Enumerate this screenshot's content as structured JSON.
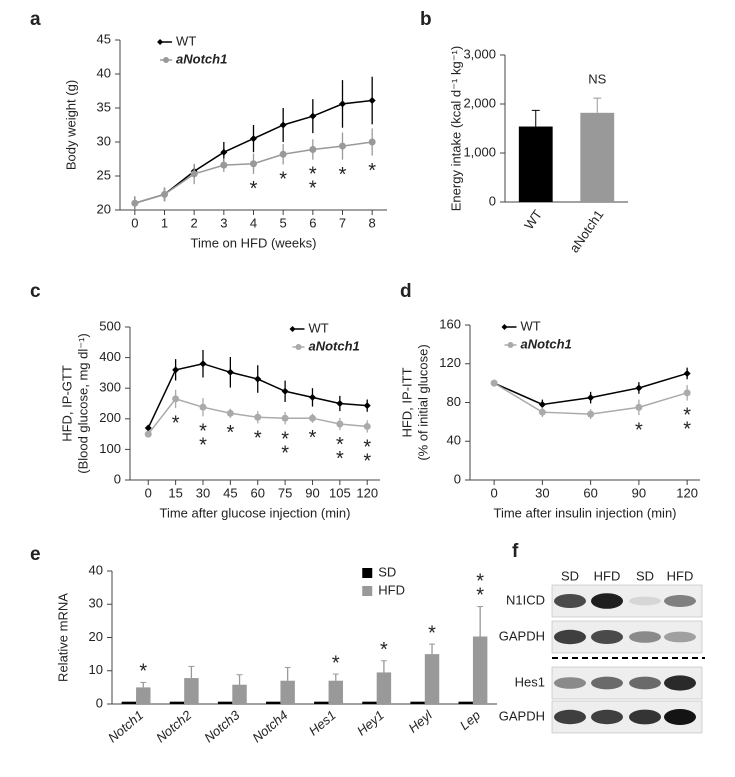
{
  "chart_data": [
    {
      "type": "line",
      "panel": "a",
      "x_label": "Time on HFD (weeks)",
      "y_label": "Body weight (g)",
      "x": [
        0,
        1,
        2,
        3,
        4,
        5,
        6,
        7,
        8
      ],
      "xlim": [
        -0.5,
        8.5
      ],
      "xticks": [
        0,
        1,
        2,
        3,
        4,
        5,
        6,
        7,
        8
      ],
      "ylim": [
        20,
        45
      ],
      "yticks": [
        20,
        25,
        30,
        35,
        40,
        45
      ],
      "legend": "upper-left",
      "series": [
        {
          "name": "WT",
          "color": "#000000",
          "values": [
            21,
            22.3,
            25.7,
            28.5,
            30.5,
            32.5,
            33.8,
            35.6,
            36.1
          ],
          "errors": [
            1,
            1,
            1,
            1.5,
            2,
            2.5,
            2.5,
            3.5,
            3.5
          ]
        },
        {
          "name": "aNotch1",
          "color": "#999999",
          "values": [
            21,
            22.3,
            25.3,
            26.6,
            26.8,
            28.2,
            28.9,
            29.4,
            30
          ],
          "errors": [
            1,
            1,
            1.5,
            1,
            1.5,
            1.5,
            1.5,
            2,
            2
          ]
        }
      ],
      "annotations": [
        {
          "x": 4,
          "text": "*"
        },
        {
          "x": 5,
          "text": "*"
        },
        {
          "x": 6,
          "text": "**"
        },
        {
          "x": 7,
          "text": "*"
        },
        {
          "x": 8,
          "text": "*"
        }
      ]
    },
    {
      "type": "bar",
      "panel": "b",
      "y_label": "Energy intake (kcal d⁻¹ kg⁻¹)",
      "categories": [
        "WT",
        "aNotch1"
      ],
      "values": [
        1540,
        1820
      ],
      "errors": [
        330,
        300
      ],
      "colors": [
        "#000000",
        "#999999"
      ],
      "ylim": [
        0,
        3000
      ],
      "yticks": [
        0,
        {
          "value": 1000,
          "label": "1,000"
        },
        {
          "value": 2000,
          "label": "2,000"
        },
        {
          "value": 3000,
          "label": "3,000"
        }
      ],
      "annotations": [
        {
          "category": "aNotch1",
          "text": "NS"
        }
      ]
    },
    {
      "type": "line",
      "panel": "c",
      "x_label": "Time after glucose injection (min)",
      "y_label": "HFD, IP-GTT",
      "y_label2": "(Blood glucose, mg dl⁻¹)",
      "x": [
        0,
        15,
        30,
        45,
        60,
        75,
        90,
        105,
        120
      ],
      "xlim": [
        -10,
        127
      ],
      "xticks": [
        0,
        15,
        30,
        45,
        60,
        75,
        90,
        105,
        120
      ],
      "ylim": [
        0,
        500
      ],
      "yticks": [
        0,
        100,
        200,
        300,
        400,
        500
      ],
      "legend": "upper-right",
      "series": [
        {
          "name": "WT",
          "color": "#000000",
          "values": [
            170,
            360,
            380,
            352,
            330,
            290,
            270,
            250,
            243
          ],
          "errors": [
            10,
            35,
            45,
            50,
            45,
            35,
            30,
            25,
            20
          ]
        },
        {
          "name": "aNotch1",
          "color": "#aaaaaa",
          "values": [
            150,
            265,
            238,
            218,
            205,
            202,
            202,
            183,
            175
          ],
          "errors": [
            10,
            30,
            30,
            15,
            20,
            20,
            15,
            20,
            20
          ]
        }
      ],
      "annotations": [
        {
          "x": 15,
          "text": "*"
        },
        {
          "x": 30,
          "text": "**"
        },
        {
          "x": 45,
          "text": "*"
        },
        {
          "x": 60,
          "text": "*"
        },
        {
          "x": 75,
          "text": "**"
        },
        {
          "x": 90,
          "text": "*"
        },
        {
          "x": 105,
          "text": "**"
        },
        {
          "x": 120,
          "text": "**"
        }
      ]
    },
    {
      "type": "line",
      "panel": "d",
      "x_label": "Time after insulin injection (min)",
      "y_label": "HFD, IP-ITT",
      "y_label2": "(% of initial glucose)",
      "x": [
        0,
        30,
        60,
        90,
        120
      ],
      "xlim": [
        -15,
        128
      ],
      "xticks": [
        0,
        30,
        60,
        90,
        120
      ],
      "ylim": [
        0,
        160
      ],
      "yticks": [
        0,
        40,
        80,
        120,
        160
      ],
      "legend": "upper-left",
      "series": [
        {
          "name": "WT",
          "color": "#000000",
          "values": [
            100,
            78,
            85,
            95,
            110
          ],
          "errors": [
            0,
            5,
            6,
            6,
            6
          ]
        },
        {
          "name": "aNotch1",
          "color": "#aaaaaa",
          "values": [
            100,
            70,
            68,
            75,
            90
          ],
          "errors": [
            0,
            5,
            5,
            8,
            8
          ]
        }
      ],
      "annotations": [
        {
          "x": 90,
          "text": "*"
        },
        {
          "x": 120,
          "text": "**"
        }
      ]
    },
    {
      "type": "grouped_bar",
      "panel": "e",
      "y_label": "Relative mRNA",
      "categories": [
        "Notch1",
        "Notch2",
        "Notch3",
        "Notch4",
        "Hes1",
        "Hey1",
        "Heyl",
        "Lep"
      ],
      "ylim": [
        0,
        40
      ],
      "yticks": [
        0,
        10,
        20,
        30,
        40
      ],
      "legend": "upper-right",
      "series": [
        {
          "name": "SD",
          "color": "#000000",
          "values": [
            0.7,
            0.7,
            0.7,
            0.7,
            0.7,
            0.7,
            0.7,
            0.7
          ]
        },
        {
          "name": "HFD",
          "color": "#999999",
          "values": [
            5,
            7.8,
            5.8,
            7,
            7,
            9.5,
            15,
            20.3
          ],
          "errors": [
            1.5,
            3.5,
            3,
            4,
            2,
            3.5,
            3,
            9
          ]
        }
      ],
      "annotations": [
        {
          "category": "Notch1",
          "text": "*"
        },
        {
          "category": "Hes1",
          "text": "*"
        },
        {
          "category": "Hey1",
          "text": "*"
        },
        {
          "category": "Heyl",
          "text": "*"
        },
        {
          "category": "Lep",
          "text": "**"
        }
      ]
    }
  ],
  "blot": {
    "panel": "f",
    "columns": [
      "SD",
      "HFD",
      "SD",
      "HFD"
    ],
    "rows": [
      "N1ICD",
      "GAPDH",
      "Hes1",
      "GAPDH"
    ]
  }
}
